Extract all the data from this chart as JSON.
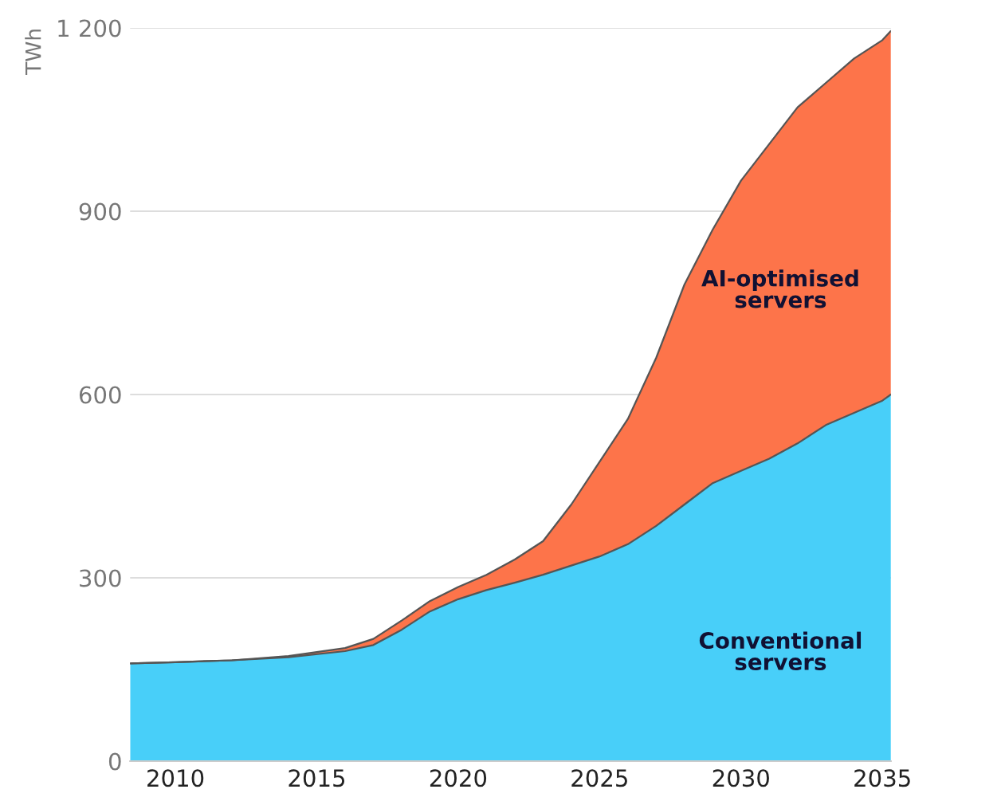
{
  "chart_data": {
    "type": "area",
    "stacked": true,
    "ylabel": "TWh",
    "x": [
      2008.4,
      2010,
      2012,
      2014,
      2016,
      2017,
      2018,
      2019,
      2020,
      2021,
      2022,
      2023,
      2024,
      2025,
      2026,
      2027,
      2028,
      2029,
      2030,
      2031,
      2032,
      2033,
      2034,
      2035,
      2035.3
    ],
    "series": [
      {
        "name": "Conventional\nservers",
        "color": "#48cff9",
        "values": [
          160,
          162,
          165,
          170,
          180,
          190,
          215,
          245,
          265,
          280,
          292,
          305,
          320,
          335,
          355,
          385,
          420,
          455,
          475,
          495,
          520,
          550,
          570,
          590,
          600
        ]
      },
      {
        "name": "AI-optimised\nservers",
        "color": "#fd744a",
        "values": [
          0,
          0,
          0,
          2,
          5,
          10,
          15,
          17,
          20,
          25,
          38,
          55,
          100,
          155,
          205,
          275,
          360,
          415,
          475,
          515,
          550,
          560,
          580,
          590,
          595
        ]
      }
    ],
    "xlim": [
      2008.4,
      2035.3
    ],
    "xticks": [
      2010,
      2015,
      2020,
      2025,
      2030,
      2035
    ],
    "ylim": [
      0,
      1200
    ],
    "yticks": [
      0,
      300,
      600,
      900,
      {
        "value": 1200,
        "label": "1 200"
      }
    ],
    "grid": "y"
  }
}
